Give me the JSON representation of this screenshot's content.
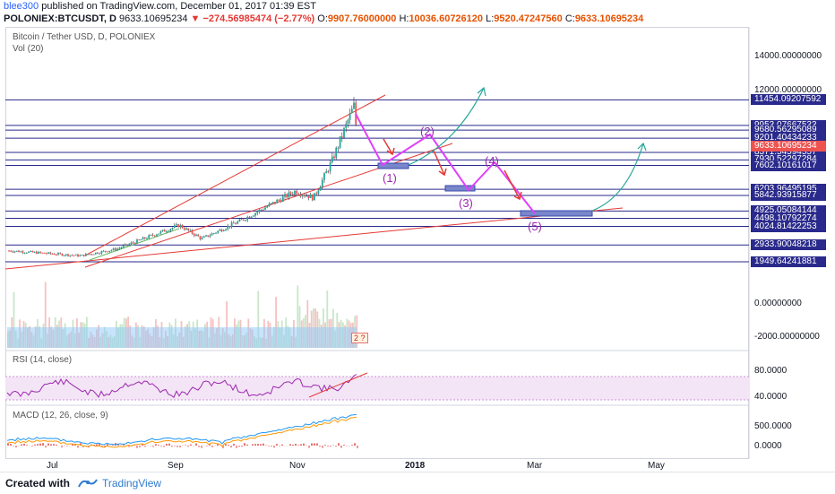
{
  "header": {
    "user": "blee300",
    "published_text": "published on TradingView.com, December 01, 2017 01:39 EST",
    "symbol": "POLONIEX:BTCUSDT, D",
    "last": "9633.10695234",
    "change": "▼ −274.56985474 (−2.77%)",
    "o_label": "O:",
    "o": "9907.76000000",
    "h_label": "H:",
    "h": "10036.60726120",
    "l_label": "L:",
    "l": "9520.47247560",
    "c_label": "C:",
    "c": "9633.10695234"
  },
  "legends": {
    "main": "Bitcoin / Tether USD, D, POLONIEX",
    "vol": "Vol (20)",
    "rsi": "RSI (14, close)",
    "macd": "MACD (12, 26, close, 9)"
  },
  "price_axis": {
    "labels": [
      "14000.00000000",
      "12000.00000000",
      "0.00000000",
      "-2000.00000000"
    ],
    "rsi_labels": [
      "80.0000",
      "40.0000"
    ],
    "macd_labels": [
      "500.0000",
      "0.0000"
    ],
    "level_tags": [
      "11454.09207592",
      "9953.07667533",
      "9680.56295089",
      "9201.40434233",
      "8371.54594557",
      "7930.52297284",
      "7602.10161017",
      "6203.96495195",
      "5842.93915877",
      "4925.05084144",
      "4498.10792274",
      "4024.81422253",
      "2933.90048218",
      "1949.64241881"
    ],
    "current_tag": "9633.10695234"
  },
  "time_axis": [
    "Jul",
    "Sep",
    "Nov",
    "2018",
    "Mar",
    "May"
  ],
  "annotations": {
    "waves": [
      "(1)",
      "(2)",
      "(3)",
      "(4)",
      "(5)"
    ],
    "event_badge": "2 ?"
  },
  "footer": {
    "created_with": "Created with",
    "brand": "TradingView"
  },
  "colors": {
    "level_line": "#2a2a8c",
    "trend_line": "#e53935",
    "wave_path": "#e040fb",
    "projection": "#26a69a",
    "volume": "#90caf9",
    "rsi_fill": "#f3e5f5",
    "current_price": "#ef5350"
  }
}
